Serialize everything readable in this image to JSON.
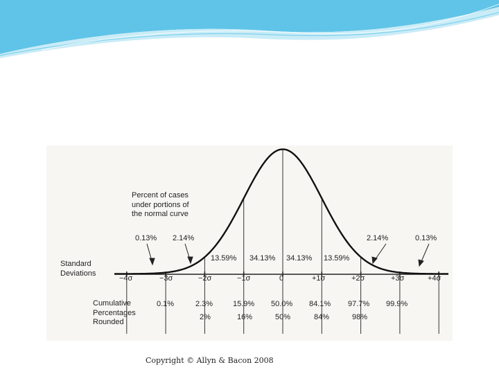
{
  "theme": {
    "accent": "#5fc4e8",
    "accent_light": "#c9ecf7",
    "line": "#222222"
  },
  "figure": {
    "percent_caption": [
      "Percent of cases",
      "under portions of",
      "the normal curve"
    ],
    "sd_caption": [
      "Standard",
      "Deviations"
    ],
    "cum_caption": [
      "Cumulative",
      "Percentages",
      "Rounded"
    ],
    "tail_labels": {
      "left_outer": "0.13%",
      "left_inner": "2.14%",
      "right_inner": "2.14%",
      "right_outer": "0.13%"
    },
    "region_percents": [
      "13.59%",
      "34.13%",
      "34.13%",
      "13.59%"
    ],
    "sd_ticks": [
      "−4σ",
      "−3σ",
      "−2σ",
      "−1σ",
      "0",
      "+1σ",
      "+2σ",
      "+3σ",
      "+4σ"
    ],
    "cumulative": [
      "0.1%",
      "2.3%",
      "15.9%",
      "50.0%",
      "84.1%",
      "97.7%",
      "99.9%"
    ],
    "rounded": [
      "2%",
      "16%",
      "50%",
      "84%",
      "98%"
    ]
  },
  "footer": {
    "copyright": "Copyright © Allyn & Bacon 2008"
  }
}
